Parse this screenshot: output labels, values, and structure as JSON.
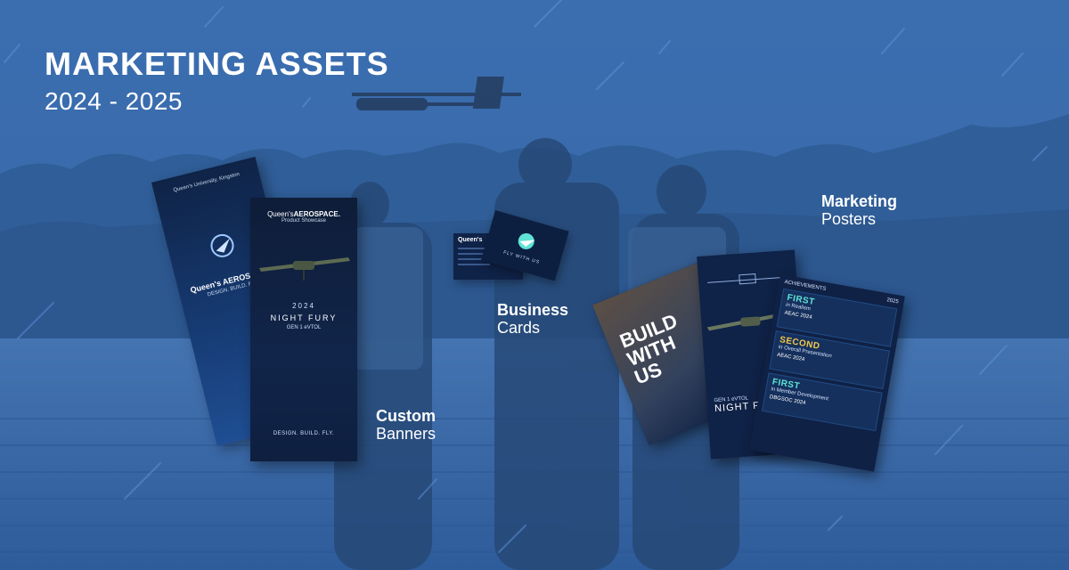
{
  "header": {
    "title": "MARKETING ASSETS",
    "subtitle": "2024 - 2025"
  },
  "labels": {
    "business_cards": {
      "line1": "Business",
      "line2": "Cards"
    },
    "custom_banners": {
      "line1": "Custom",
      "line2": "Banners"
    },
    "marketing_posters": {
      "line1": "Marketing",
      "line2": "Posters"
    }
  },
  "banner_back": {
    "org": "Queen's University, Kingston",
    "brand": "Queen's AEROSPACE",
    "slogan": "DESIGN. BUILD. FLY."
  },
  "banner_front": {
    "brand_prefix": "Queen's",
    "brand_main": "AEROSPACE.",
    "brand_sub": "Product Showcase",
    "year": "2024",
    "aircraft": "NIGHT FURY",
    "gen": "GEN 1 eVTOL",
    "footer": "DESIGN. BUILD. FLY."
  },
  "business_card": {
    "brand": "Queen's",
    "back_text": "FLY WITH US"
  },
  "poster_build": {
    "headline_1": "BUILD",
    "headline_2": "WITH",
    "headline_3": "US"
  },
  "poster_night_fury": {
    "gen": "GEN 1 eVTOL",
    "name": "NIGHT FURY"
  },
  "poster_achievements": {
    "heading": "ACHIEVEMENTS",
    "year": "2025",
    "items": [
      {
        "title": "FIRST",
        "detail": "in Realism",
        "org": "AEAC",
        "year": "2024"
      },
      {
        "title": "SECOND",
        "detail": "in Overall Presentation",
        "org": "AEAC",
        "year": "2024"
      },
      {
        "title": "FIRST",
        "detail": "in Member Development",
        "org": "DBGSOC",
        "year": "2024"
      }
    ]
  },
  "colors": {
    "overlay": "#2f5fa3",
    "accent_teal": "#5fe3d6",
    "accent_gold": "#f2c94c",
    "panel_dark": "#0f2247"
  }
}
